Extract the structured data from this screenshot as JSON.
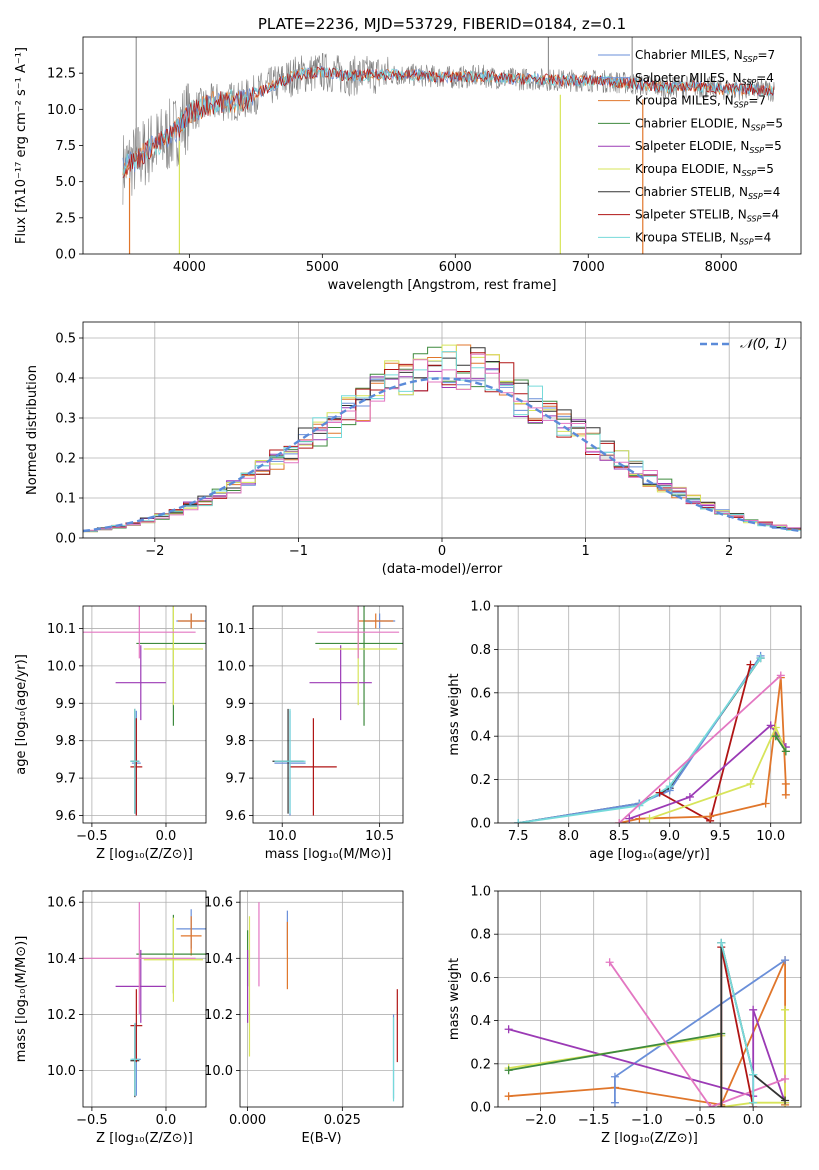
{
  "title": "PLATE=2236, MJD=53729, FIBERID=0184, z=0.1",
  "colors": {
    "Chabrier MILES": "#6a8fd9",
    "Salpeter MILES": "#6a8fd9",
    "Kroupa MILES": "#e0762b",
    "Chabrier ELODIE": "#3e8a3e",
    "Salpeter ELODIE": "#9b3ab5",
    "Kroupa ELODIE": "#d7e45a",
    "Chabrier STELIB": "#333333",
    "Salpeter STELIB": "#b01515",
    "Kroupa STELIB": "#76dada",
    "normal": "#5b8bd9",
    "spectrum": "#808080"
  },
  "chart_data": [
    {
      "type": "line",
      "panel": "spectrum",
      "xlabel": "wavelength [Angstrom, rest frame]",
      "ylabel": "Flux [fλ10⁻¹⁷ erg cm⁻² s⁻¹ A⁻¹]",
      "xlim": [
        3200,
        8600
      ],
      "ylim": [
        0,
        15
      ],
      "xticks": [
        "4000",
        "5000",
        "6000",
        "7000",
        "8000"
      ],
      "yticks": [
        "0.0",
        "2.5",
        "5.0",
        "7.5",
        "10.0",
        "12.5"
      ],
      "legend_position": "right",
      "legend": [
        {
          "label": "Chabrier MILES, N",
          "sub": "SSP",
          "suffix": "=7",
          "color": "#6a8fd9"
        },
        {
          "label": "Salpeter MILES, N",
          "sub": "SSP",
          "suffix": "=4",
          "color": "#6a8fd9"
        },
        {
          "label": "Kroupa MILES, N",
          "sub": "SSP",
          "suffix": "=7",
          "color": "#e0762b"
        },
        {
          "label": "Chabrier ELODIE, N",
          "sub": "SSP",
          "suffix": "=5",
          "color": "#3e8a3e"
        },
        {
          "label": "Salpeter ELODIE, N",
          "sub": "SSP",
          "suffix": "=5",
          "color": "#9b3ab5"
        },
        {
          "label": "Kroupa ELODIE, N",
          "sub": "SSP",
          "suffix": "=5",
          "color": "#d7e45a"
        },
        {
          "label": "Chabrier STELIB, N",
          "sub": "SSP",
          "suffix": "=4",
          "color": "#333333"
        },
        {
          "label": "Salpeter STELIB, N",
          "sub": "SSP",
          "suffix": "=4",
          "color": "#b01515"
        },
        {
          "label": "Kroupa STELIB, N",
          "sub": "SSP",
          "suffix": "=4",
          "color": "#76dada"
        }
      ],
      "continuum": {
        "x": [
          3500,
          3600,
          3700,
          3800,
          3900,
          4000,
          4200,
          4400,
          4600,
          4800,
          5000,
          5200,
          5400,
          5600,
          5800,
          6000,
          6200,
          6400,
          6600,
          6800,
          7000,
          7200,
          7400,
          7600,
          7800,
          8000,
          8200,
          8400
        ],
        "y": [
          6.0,
          6.5,
          7.3,
          7.8,
          8.5,
          9.8,
          10.5,
          10.6,
          11.5,
          12.4,
          12.6,
          12.3,
          12.4,
          12.4,
          12.3,
          12.2,
          12.3,
          12.1,
          12.1,
          12.0,
          12.0,
          11.9,
          11.7,
          11.5,
          11.6,
          11.4,
          11.4,
          11.3
        ]
      },
      "spikes_down": [
        3550,
        3925,
        6790,
        7410
      ],
      "spikes_up": [
        3600,
        6700,
        7330
      ]
    },
    {
      "type": "line",
      "panel": "residual-histogram",
      "xlabel": "(data-model)/error",
      "ylabel": "Normed distribution",
      "xlim": [
        -2.5,
        2.5
      ],
      "ylim": [
        0,
        0.54
      ],
      "xticks": [
        "−2",
        "−1",
        "0",
        "1",
        "2"
      ],
      "yticks": [
        "0.0",
        "0.1",
        "0.2",
        "0.3",
        "0.4",
        "0.5"
      ],
      "legend_label": "𝒩(0, 1)",
      "bin_width": 0.1
    },
    {
      "type": "scatter",
      "panel": "age-vs-Z",
      "xlabel": "Z [log₁₀(Z/Z⊙)]",
      "ylabel": "age  [log₁₀(age/yr)]",
      "xlim": [
        -0.56,
        0.27
      ],
      "ylim": [
        9.58,
        10.16
      ],
      "xticks": [
        "−0.5",
        "0.0"
      ],
      "xtick_values": [
        -0.5,
        0.0
      ],
      "yticks": [
        "9.6",
        "9.7",
        "9.8",
        "9.9",
        "10.0",
        "10.1"
      ],
      "ytick_values": [
        9.6,
        9.7,
        9.8,
        9.9,
        10.0,
        10.1
      ],
      "points": [
        {
          "series": "Chabrier MILES",
          "color": "#6a8fd9",
          "x": 0.17,
          "xerr": 0.1,
          "y": 10.12,
          "yerr": 0.02
        },
        {
          "series": "Salpeter MILES",
          "color": "#6a8fd9",
          "x": -0.2,
          "xerr": 0.03,
          "y": 9.74,
          "yerr": 0.14
        },
        {
          "series": "Kroupa MILES",
          "color": "#e0762b",
          "x": 0.17,
          "xerr": 0.09,
          "y": 10.12,
          "yerr": 0.02
        },
        {
          "series": "Chabrier ELODIE",
          "color": "#3e8a3e",
          "x": 0.05,
          "xerr": 0.25,
          "y": 10.06,
          "yerr": 0.22
        },
        {
          "series": "Salpeter ELODIE",
          "color": "#9b3ab5",
          "x": -0.17,
          "xerr": 0.17,
          "y": 9.955,
          "yerr": 0.1
        },
        {
          "series": "Kroupa ELODIE",
          "color": "#d7e45a",
          "x": 0.05,
          "xerr": 0.2,
          "y": 10.045,
          "yerr": 0.15
        },
        {
          "series": "Chabrier STELIB",
          "color": "#333333",
          "x": -0.21,
          "xerr": 0.03,
          "y": 9.745,
          "yerr": 0.14
        },
        {
          "series": "Salpeter STELIB",
          "color": "#b01515",
          "x": -0.2,
          "xerr": 0.04,
          "y": 9.73,
          "yerr": 0.13
        },
        {
          "series": "Kroupa STELIB",
          "color": "#76dada",
          "x": -0.21,
          "xerr": 0.03,
          "y": 9.745,
          "yerr": 0.14
        },
        {
          "series": "pink",
          "color": "#e377c2",
          "x": -0.18,
          "xerr": 0.38,
          "y": 10.09,
          "yerr": 0.07
        }
      ]
    },
    {
      "type": "scatter",
      "panel": "age-vs-mass",
      "xlabel": "mass [log₁₀(M/M⊙)]",
      "xlim": [
        9.85,
        10.62
      ],
      "ylim": [
        9.58,
        10.16
      ],
      "xticks": [
        "10.0",
        "10.5"
      ],
      "xtick_values": [
        10.0,
        10.5
      ],
      "yticks": [
        "9.6",
        "9.7",
        "9.8",
        "9.9",
        "10.0",
        "10.1"
      ],
      "ytick_values": [
        9.6,
        9.7,
        9.8,
        9.9,
        10.0,
        10.1
      ],
      "points": [
        {
          "series": "Chabrier MILES",
          "color": "#6a8fd9",
          "x": 10.5,
          "xerr": 0.08,
          "y": 10.12,
          "yerr": 0.02
        },
        {
          "series": "Salpeter MILES",
          "color": "#6a8fd9",
          "x": 10.04,
          "xerr": 0.08,
          "y": 9.74,
          "yerr": 0.14
        },
        {
          "series": "Kroupa MILES",
          "color": "#e0762b",
          "x": 10.48,
          "xerr": 0.09,
          "y": 10.12,
          "yerr": 0.02
        },
        {
          "series": "Chabrier ELODIE",
          "color": "#3e8a3e",
          "x": 10.42,
          "xerr": 0.25,
          "y": 10.06,
          "yerr": 0.22
        },
        {
          "series": "Salpeter ELODIE",
          "color": "#9b3ab5",
          "x": 10.3,
          "xerr": 0.16,
          "y": 9.955,
          "yerr": 0.1
        },
        {
          "series": "Kroupa ELODIE",
          "color": "#d7e45a",
          "x": 10.39,
          "xerr": 0.2,
          "y": 10.045,
          "yerr": 0.15
        },
        {
          "series": "Chabrier STELIB",
          "color": "#333333",
          "x": 10.03,
          "xerr": 0.08,
          "y": 9.745,
          "yerr": 0.14
        },
        {
          "series": "Salpeter STELIB",
          "color": "#b01515",
          "x": 10.16,
          "xerr": 0.12,
          "y": 9.73,
          "yerr": 0.13
        },
        {
          "series": "Kroupa STELIB",
          "color": "#76dada",
          "x": 10.04,
          "xerr": 0.08,
          "y": 9.745,
          "yerr": 0.14
        },
        {
          "series": "pink",
          "color": "#e377c2",
          "x": 10.39,
          "xerr": 0.21,
          "y": 10.09,
          "yerr": 0.07
        }
      ]
    },
    {
      "type": "line",
      "panel": "weight-vs-age",
      "xlabel": "age  [log₁₀(age/yr)]",
      "ylabel": "mass weight",
      "xlim": [
        7.3,
        10.3
      ],
      "ylim": [
        0,
        1
      ],
      "xticks": [
        "7.5",
        "8.0",
        "8.5",
        "9.0",
        "9.5",
        "10.0"
      ],
      "xtick_values": [
        7.5,
        8.0,
        8.5,
        9.0,
        9.5,
        10.0
      ],
      "yticks": [
        "0.0",
        "0.2",
        "0.4",
        "0.6",
        "0.8",
        "1.0"
      ],
      "ytick_values": [
        0,
        0.2,
        0.4,
        0.6,
        0.8,
        1.0
      ],
      "series": [
        {
          "name": "Chabrier STELIB",
          "color": "#333333",
          "x": [
            7.5,
            8.7,
            9.0,
            9.9
          ],
          "y": [
            0.0,
            0.09,
            0.16,
            0.76
          ]
        },
        {
          "name": "Chabrier MILES",
          "color": "#6a8fd9",
          "x": [
            7.5,
            8.7,
            9.0,
            9.9
          ],
          "y": [
            0.0,
            0.09,
            0.15,
            0.77
          ]
        },
        {
          "name": "Kroupa STELIB",
          "color": "#76dada",
          "x": [
            7.5,
            8.7,
            9.0,
            9.9
          ],
          "y": [
            0.0,
            0.08,
            0.17,
            0.76
          ]
        },
        {
          "name": "Salpeter STELIB",
          "color": "#b01515",
          "x": [
            8.9,
            9.4,
            9.8
          ],
          "y": [
            0.14,
            0.01,
            0.73
          ]
        },
        {
          "name": "Kroupa MILES",
          "color": "#e0762b",
          "x": [
            8.5,
            8.7,
            9.4,
            9.95,
            10.1,
            10.15,
            10.15
          ],
          "y": [
            0.0,
            0.02,
            0.03,
            0.09,
            0.67,
            0.18,
            0.13
          ]
        },
        {
          "name": "pink",
          "color": "#e377c2",
          "x": [
            8.5,
            10.1
          ],
          "y": [
            0.0,
            0.68
          ]
        },
        {
          "name": "Salpeter ELODIE",
          "color": "#9b3ab5",
          "x": [
            8.6,
            9.2,
            10.0,
            10.15
          ],
          "y": [
            0.02,
            0.12,
            0.45,
            0.35
          ]
        },
        {
          "name": "Kroupa ELODIE",
          "color": "#d7e45a",
          "x": [
            8.8,
            9.8,
            10.05,
            10.15
          ],
          "y": [
            0.02,
            0.18,
            0.44,
            0.33
          ]
        },
        {
          "name": "Chabrier ELODIE",
          "color": "#3e8a3e",
          "x": [
            10.05,
            10.15
          ],
          "y": [
            0.4,
            0.33
          ]
        }
      ]
    },
    {
      "type": "scatter",
      "panel": "mass-vs-Z",
      "xlabel": "Z [log₁₀(Z/Z⊙)]",
      "ylabel": "mass [log₁₀(M/M⊙)]",
      "xlim": [
        -0.56,
        0.27
      ],
      "ylim": [
        9.87,
        10.64
      ],
      "xticks": [
        "−0.5",
        "0.0"
      ],
      "xtick_values": [
        -0.5,
        0.0
      ],
      "yticks": [
        "10.0",
        "10.2",
        "10.4",
        "10.6"
      ],
      "ytick_values": [
        10.0,
        10.2,
        10.4,
        10.6
      ],
      "points": [
        {
          "series": "Chabrier MILES",
          "color": "#6a8fd9",
          "x": 0.17,
          "xerr": 0.1,
          "y": 10.505,
          "yerr": 0.07
        },
        {
          "series": "Salpeter MILES",
          "color": "#6a8fd9",
          "x": -0.2,
          "xerr": 0.03,
          "y": 10.04,
          "yerr": 0.13
        },
        {
          "series": "Kroupa MILES",
          "color": "#e0762b",
          "x": 0.17,
          "xerr": 0.07,
          "y": 10.48,
          "yerr": 0.07
        },
        {
          "series": "Chabrier ELODIE",
          "color": "#3e8a3e",
          "x": 0.05,
          "xerr": 0.25,
          "y": 10.415,
          "yerr": 0.14
        },
        {
          "series": "Salpeter ELODIE",
          "color": "#9b3ab5",
          "x": -0.17,
          "xerr": 0.17,
          "y": 10.3,
          "yerr": 0.13
        },
        {
          "series": "Kroupa ELODIE",
          "color": "#d7e45a",
          "x": 0.05,
          "xerr": 0.2,
          "y": 10.395,
          "yerr": 0.15
        },
        {
          "series": "Chabrier STELIB",
          "color": "#333333",
          "x": -0.21,
          "xerr": 0.03,
          "y": 10.035,
          "yerr": 0.13
        },
        {
          "series": "Salpeter STELIB",
          "color": "#b01515",
          "x": -0.2,
          "xerr": 0.04,
          "y": 10.16,
          "yerr": 0.13
        },
        {
          "series": "Kroupa STELIB",
          "color": "#76dada",
          "x": -0.21,
          "xerr": 0.03,
          "y": 10.04,
          "yerr": 0.13
        },
        {
          "series": "pink",
          "color": "#e377c2",
          "x": -0.18,
          "xerr": 0.38,
          "y": 10.4,
          "yerr": 0.2
        }
      ]
    },
    {
      "type": "scatter",
      "panel": "mass-vs-EBV",
      "xlabel": "E(B-V)",
      "xlim": [
        -0.002,
        0.041
      ],
      "ylim": [
        9.87,
        10.64
      ],
      "xticks": [
        "0.000",
        "0.025"
      ],
      "xtick_values": [
        0.0,
        0.025
      ],
      "yticks": [
        "10.0",
        "10.2",
        "10.4",
        "10.6"
      ],
      "ytick_values": [
        10.0,
        10.2,
        10.4,
        10.6
      ],
      "points": [
        {
          "series": "Chabrier MILES",
          "color": "#6a8fd9",
          "x": 0.0105,
          "xerr": 0,
          "y": 10.5,
          "yerr": 0.07
        },
        {
          "series": "Salpeter MILES",
          "color": "#6a8fd9",
          "x": 0.0385,
          "xerr": 0,
          "y": 10.05,
          "yerr": 0.15
        },
        {
          "series": "Kroupa MILES",
          "color": "#e0762b",
          "x": 0.0105,
          "xerr": 0,
          "y": 10.41,
          "yerr": 0.12
        },
        {
          "series": "Chabrier ELODIE",
          "color": "#3e8a3e",
          "x": 0.0,
          "xerr": 0,
          "y": 10.4,
          "yerr": 0.1
        },
        {
          "series": "Salpeter ELODIE",
          "color": "#9b3ab5",
          "x": 0.0,
          "xerr": 0,
          "y": 10.3,
          "yerr": 0.13
        },
        {
          "series": "Kroupa ELODIE",
          "color": "#d7e45a",
          "x": 0.0005,
          "xerr": 0,
          "y": 10.3,
          "yerr": 0.25
        },
        {
          "series": "Salpeter STELIB",
          "color": "#b01515",
          "x": 0.0395,
          "xerr": 0,
          "y": 10.16,
          "yerr": 0.13
        },
        {
          "series": "Kroupa STELIB",
          "color": "#76dada",
          "x": 0.0385,
          "xerr": 0,
          "y": 10.04,
          "yerr": 0.15
        },
        {
          "series": "pink",
          "color": "#e377c2",
          "x": 0.003,
          "xerr": 0,
          "y": 10.45,
          "yerr": 0.15
        }
      ]
    },
    {
      "type": "line",
      "panel": "weight-vs-Z",
      "xlabel": "Z [log₁₀(Z/Z⊙)]",
      "ylabel": "mass weight",
      "xlim": [
        -2.4,
        0.45
      ],
      "ylim": [
        0,
        1
      ],
      "xticks": [
        "−2.0",
        "−1.5",
        "−1.0",
        "−0.5",
        "0.0"
      ],
      "xtick_values": [
        -2.0,
        -1.5,
        -1.0,
        -0.5,
        0.0
      ],
      "yticks": [
        "0.0",
        "0.2",
        "0.4",
        "0.6",
        "0.8",
        "1.0"
      ],
      "ytick_values": [
        0,
        0.2,
        0.4,
        0.6,
        0.8,
        1.0
      ],
      "series": [
        {
          "name": "Kroupa MILES",
          "color": "#e0762b",
          "x": [
            -2.3,
            -1.3,
            -0.3,
            0.3,
            0.3,
            0.3
          ],
          "y": [
            0.05,
            0.09,
            0.01,
            0.68,
            0.02,
            0.01
          ]
        },
        {
          "name": "Chabrier MILES",
          "color": "#6a8fd9",
          "x": [
            -1.3,
            -1.3,
            0.3
          ],
          "y": [
            0.02,
            0.14,
            0.68
          ]
        },
        {
          "name": "Salpeter ELODIE",
          "color": "#9b3ab5",
          "x": [
            -2.3,
            0.0,
            0.0,
            0.3
          ],
          "y": [
            0.36,
            0.05,
            0.45,
            0.02
          ]
        },
        {
          "name": "Kroupa ELODIE",
          "color": "#d7e45a",
          "x": [
            -2.3,
            -0.3,
            -0.3,
            0.0,
            0.3,
            0.3
          ],
          "y": [
            0.18,
            0.33,
            0.0,
            0.02,
            0.02,
            0.45
          ]
        },
        {
          "name": "Chabrier ELODIE",
          "color": "#3e8a3e",
          "x": [
            -2.3,
            -0.3
          ],
          "y": [
            0.17,
            0.34
          ]
        },
        {
          "name": "pink",
          "color": "#e377c2",
          "x": [
            -1.35,
            -0.4,
            0.3
          ],
          "y": [
            0.67,
            0.0,
            0.13
          ]
        },
        {
          "name": "Salpeter STELIB",
          "color": "#b01515",
          "x": [
            -0.3,
            -0.3,
            0.0
          ],
          "y": [
            0.0,
            0.74,
            0.0
          ]
        },
        {
          "name": "Chabrier STELIB",
          "color": "#333333",
          "x": [
            -0.3,
            -0.3,
            0.0,
            0.3
          ],
          "y": [
            0.0,
            0.76,
            0.15,
            0.03
          ]
        },
        {
          "name": "Kroupa STELIB",
          "color": "#76dada",
          "x": [
            -0.3,
            0.0,
            0.0
          ],
          "y": [
            0.76,
            0.15,
            0.02
          ]
        }
      ]
    }
  ]
}
